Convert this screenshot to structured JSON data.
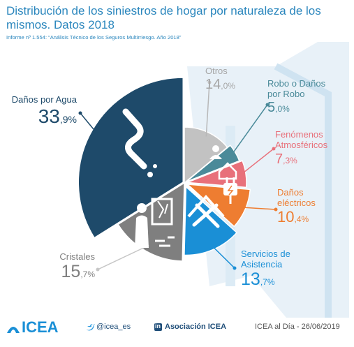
{
  "header": {
    "title": "Distribución de los siniestros de hogar por naturaleza de los mismos. Datos 2018",
    "subtitle": "Informe nº 1.554: “Análisis Técnico de los Seguros Multirriesgo. Año 2018”"
  },
  "colors": {
    "title": "#2a86bd",
    "agua": "#1e4a6a",
    "cristales": "#7f7f7f",
    "otros": "#c2c2c2",
    "robo": "#4a8a99",
    "fenomenos": "#e8707a",
    "electricos": "#ee7d31",
    "servicios": "#1a8fd6",
    "footer": "#1f4e79"
  },
  "chart_data": {
    "type": "pie",
    "title": "Distribución de los siniestros de hogar por naturaleza de los mismos. Datos 2018",
    "unit": "%",
    "slices": [
      {
        "label": "Otros",
        "value": 14.0,
        "display_int": "14",
        "display_dec": ",0",
        "color": "#c2c2c2",
        "icon": "none"
      },
      {
        "label": "Robo o Daños por Robo",
        "label_line1": "Robo o Daños",
        "label_line2": "por Robo",
        "value": 5.0,
        "display_int": "5",
        "display_dec": ",0",
        "color": "#4a8a99",
        "icon": "burglar-icon"
      },
      {
        "label": "Fenómenos Atmosféricos",
        "label_line1": "Fenómenos",
        "label_line2": "Atmosféricos",
        "value": 7.3,
        "display_int": "7",
        "display_dec": ",3",
        "color": "#e8707a",
        "icon": "storm-house-icon"
      },
      {
        "label": "Daños eléctricos",
        "label_line1": "Daños",
        "label_line2": "eléctricos",
        "value": 10.4,
        "display_int": "10",
        "display_dec": ",4",
        "color": "#ee7d31",
        "icon": "plug-icon"
      },
      {
        "label": "Servicios de Asistencia",
        "label_line1": "Servicios de",
        "label_line2": "Asistencia",
        "value": 13.7,
        "display_int": "13",
        "display_dec": ",7",
        "color": "#1a8fd6",
        "icon": "tools-house-icon"
      },
      {
        "label": "Cristales",
        "value": 15.7,
        "display_int": "15",
        "display_dec": ",7",
        "color": "#7f7f7f",
        "icon": "broken-window-icon"
      },
      {
        "label": "Daños por Agua",
        "value": 33.9,
        "display_int": "33",
        "display_dec": ",9",
        "color": "#1e4a6a",
        "icon": "leaking-pipe-icon"
      }
    ]
  },
  "footer": {
    "brand": "ICEA",
    "twitter_handle": "@icea_es",
    "linkedin_label": "Asociación ICEA",
    "date_label": "ICEA al Día - 26/06/2019",
    "icons": [
      "icea-logo-icon",
      "twitter-bird-icon",
      "linkedin-icon"
    ]
  }
}
